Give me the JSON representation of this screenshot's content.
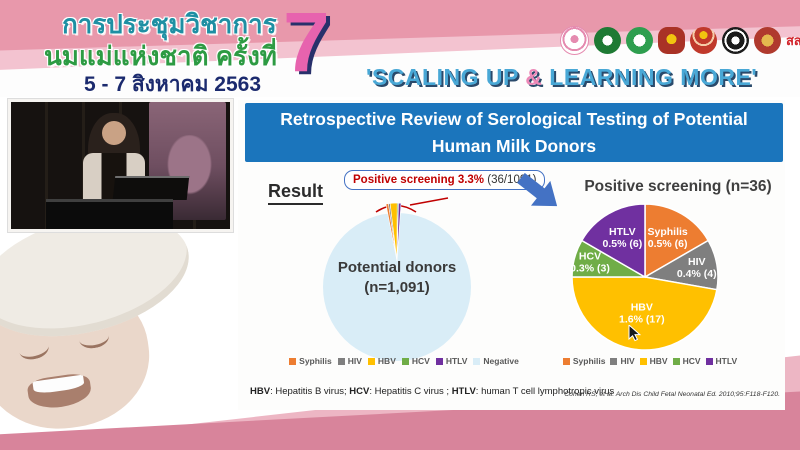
{
  "header": {
    "title_line1": "การประชุมวิชาการ",
    "title_line2": "นมแม่แห่งชาติ ครั้งที่",
    "date_line": "5 - 7 สิงหาคม 2563",
    "edition_number": "7",
    "slogan": {
      "pre": "'SCALING UP ",
      "amp": "&",
      "post": " LEARNING MORE'"
    },
    "logos": [
      {
        "name": "breastfeeding-center-logo",
        "text": ""
      },
      {
        "name": "health-department-green-logo",
        "text": ""
      },
      {
        "name": "medical-services-green-logo",
        "text": ""
      },
      {
        "name": "royal-emblem-logo",
        "text": ""
      },
      {
        "name": "university-crest-logo",
        "text": ""
      },
      {
        "name": "pediatric-society-emblem-logo",
        "text": ""
      },
      {
        "name": "royal-college-emblem-logo",
        "text": ""
      },
      {
        "name": "thaihealth-logo",
        "text": "สสส"
      }
    ]
  },
  "slide": {
    "title": "Retrospective Review of Serological Testing of Potential Human Milk Donors",
    "result_label": "Result",
    "callout": {
      "highlight": "Positive screening 3.3%",
      "detail": " (36/1091)"
    },
    "footnote_parts": [
      {
        "text": "HBV",
        "bold": true
      },
      {
        "text": ": Hepatitis B virus; ",
        "bold": false
      },
      {
        "text": "HCV",
        "bold": true
      },
      {
        "text": ": Hepatitis C virus ; ",
        "bold": false
      },
      {
        "text": "HTLV",
        "bold": true
      },
      {
        "text": ": human T cell lymphotropic virus",
        "bold": false
      }
    ],
    "citation": "Cohen RS, et al. Arch Dis Child Fetal Neonatal Ed. 2010;95:F118-F120."
  },
  "colors": {
    "Syphilis": "#ED7D31",
    "HIV": "#7F7F7F",
    "HBV": "#FFC000",
    "HCV": "#70AD47",
    "HTLV": "#7030A0",
    "Negative": "#D9EDF7",
    "banner_blue": "#1B75BC",
    "arrow_blue": "#4472C4",
    "callout_red": "#C00000"
  },
  "chart_data": [
    {
      "type": "pie",
      "name": "potential-donors-pie",
      "center_label_line1": "Potential donors",
      "center_label_line2": "(n=1,091)",
      "annotation": "Positive screening 3.3% (36/1091)",
      "categories": [
        "Syphilis",
        "HIV",
        "HBV",
        "HCV",
        "HTLV",
        "Negative"
      ],
      "values": [
        6,
        4,
        17,
        3,
        6,
        1055
      ],
      "total": 1091,
      "legend": [
        "Syphilis",
        "HIV",
        "HBV",
        "HCV",
        "HTLV",
        "Negative"
      ],
      "legend_position": "bottom"
    },
    {
      "type": "pie",
      "name": "positive-screening-pie",
      "title": "Positive screening (n=36)",
      "categories": [
        "Syphilis",
        "HIV",
        "HBV",
        "HCV",
        "HTLV"
      ],
      "values": [
        6,
        4,
        17,
        3,
        6
      ],
      "total": 36,
      "slice_labels": [
        "0.5% (6)",
        "0.4% (4)",
        "1.6% (17)",
        "0.3% (3)",
        "0.5% (6)"
      ],
      "legend": [
        "Syphilis",
        "HIV",
        "HBV",
        "HCV",
        "HTLV"
      ],
      "legend_position": "bottom"
    }
  ]
}
